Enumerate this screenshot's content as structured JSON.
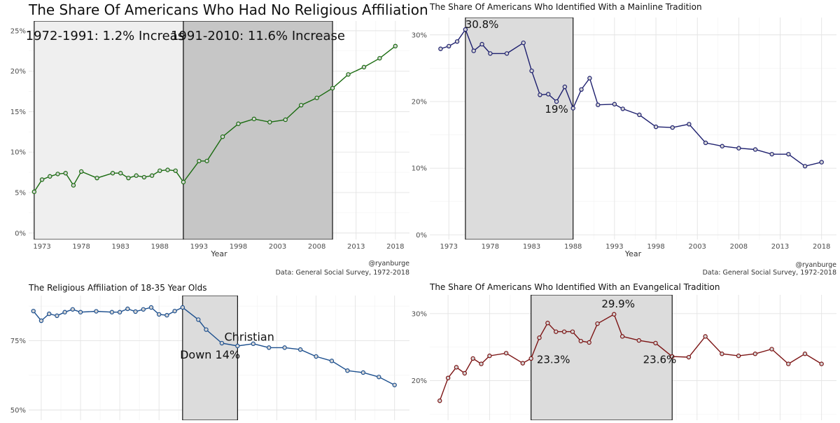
{
  "chart_data": [
    {
      "type": "line",
      "title": "The Share Of Americans Who Had No Religious Affiliation",
      "xlabel": "Year",
      "ylabel": "",
      "x_ticks": [
        1973,
        1978,
        1983,
        1988,
        1993,
        1998,
        2003,
        2008,
        2013,
        2018
      ],
      "y_ticks": [
        0,
        0.05,
        0.1,
        0.15,
        0.2,
        0.25
      ],
      "y_tick_labels": [
        "0%",
        "5%",
        "10%",
        "15%",
        "20%",
        "25%"
      ],
      "xlim": [
        1971.3,
        2019.8
      ],
      "ylim": [
        -0.008,
        0.262
      ],
      "color": "#1a6b10",
      "x": [
        1972,
        1973,
        1974,
        1975,
        1976,
        1977,
        1978,
        1980,
        1982,
        1983,
        1984,
        1985,
        1986,
        1987,
        1988,
        1989,
        1990,
        1991,
        1993,
        1994,
        1996,
        1998,
        2000,
        2002,
        2004,
        2006,
        2008,
        2010,
        2012,
        2014,
        2016,
        2018
      ],
      "y": [
        0.051,
        0.066,
        0.07,
        0.073,
        0.074,
        0.059,
        0.076,
        0.068,
        0.074,
        0.074,
        0.068,
        0.071,
        0.069,
        0.071,
        0.077,
        0.078,
        0.077,
        0.063,
        0.089,
        0.089,
        0.119,
        0.135,
        0.141,
        0.137,
        0.14,
        0.158,
        0.167,
        0.179,
        0.196,
        0.205,
        0.216,
        0.231
      ],
      "shaded": [
        {
          "from": 1972,
          "to": 1991,
          "fill": "#efefef",
          "label": "1972-1991: 1.2% Increase"
        },
        {
          "from": 1991,
          "to": 2010,
          "fill": "#c6c6c6",
          "label": "1991-2010: 11.6% Increase"
        }
      ],
      "caption": [
        "@ryanburge",
        "Data: General Social Survey, 1972-2018"
      ]
    },
    {
      "type": "line",
      "title": "The Share Of Americans Who Identified With a Mainline Tradition",
      "xlabel": "Year",
      "ylabel": "",
      "x_ticks": [
        1973,
        1978,
        1983,
        1988,
        1993,
        1998,
        2003,
        2008,
        2013,
        2018
      ],
      "y_ticks": [
        0,
        0.1,
        0.2,
        0.3
      ],
      "y_tick_labels": [
        "0%",
        "10%",
        "20%",
        "30%"
      ],
      "xlim": [
        1970.7,
        2019.8
      ],
      "ylim": [
        -0.007,
        0.326
      ],
      "color": "#1d1f6e",
      "x": [
        1972,
        1973,
        1974,
        1975,
        1976,
        1977,
        1978,
        1980,
        1982,
        1983,
        1984,
        1985,
        1986,
        1987,
        1988,
        1989,
        1990,
        1991,
        1993,
        1994,
        1996,
        1998,
        2000,
        2002,
        2004,
        2006,
        2008,
        2010,
        2012,
        2014,
        2016,
        2018
      ],
      "y": [
        0.279,
        0.283,
        0.29,
        0.308,
        0.276,
        0.286,
        0.272,
        0.272,
        0.288,
        0.246,
        0.21,
        0.211,
        0.2,
        0.222,
        0.19,
        0.218,
        0.235,
        0.195,
        0.196,
        0.189,
        0.18,
        0.162,
        0.161,
        0.166,
        0.138,
        0.133,
        0.13,
        0.128,
        0.121,
        0.121,
        0.103,
        0.109
      ],
      "shaded": [
        {
          "from": 1975,
          "to": 1988,
          "fill": "#dcdcdc",
          "label": ""
        }
      ],
      "annotations": [
        {
          "text": "30.8%",
          "x": 1977.0,
          "y": 0.31
        },
        {
          "text": "19%",
          "x": 1986.0,
          "y": 0.183
        }
      ],
      "caption": [
        "@ryanburge",
        "Data: General Social Survey, 1972-2018"
      ]
    },
    {
      "type": "line",
      "title": "The Religious Affiliation of 18-35 Year Olds",
      "xlabel": "",
      "ylabel": "",
      "x_ticks": [],
      "y_ticks": [
        0.5,
        0.75
      ],
      "y_tick_labels": [
        "50%",
        "75%"
      ],
      "xlim": [
        1971.4,
        2019.9
      ],
      "ylim": [
        0.463,
        0.913
      ],
      "color": "#1c4f8e",
      "x": [
        1972,
        1973,
        1974,
        1975,
        1976,
        1977,
        1978,
        1980,
        1982,
        1983,
        1984,
        1985,
        1986,
        1987,
        1988,
        1989,
        1990,
        1991,
        1993,
        1994,
        1996,
        1998,
        2000,
        2002,
        2004,
        2006,
        2008,
        2010,
        2012,
        2014,
        2016,
        2018
      ],
      "y": [
        0.857,
        0.822,
        0.847,
        0.84,
        0.853,
        0.863,
        0.853,
        0.856,
        0.853,
        0.853,
        0.865,
        0.855,
        0.863,
        0.87,
        0.845,
        0.842,
        0.857,
        0.87,
        0.826,
        0.79,
        0.741,
        0.731,
        0.739,
        0.725,
        0.725,
        0.718,
        0.693,
        0.677,
        0.642,
        0.635,
        0.619,
        0.59
      ],
      "shaded": [
        {
          "from": 1991,
          "to": 1998,
          "fill": "#dcdcdc",
          "label": ""
        }
      ],
      "annotations": [
        {
          "text": "Christian",
          "x": 1999.5,
          "y": 0.75
        },
        {
          "text": "Down 14%",
          "x": 1994.5,
          "y": 0.685
        }
      ]
    },
    {
      "type": "line",
      "title": "The Share Of Americans Who Identified With an Evangelical Tradition",
      "xlabel": "",
      "ylabel": "",
      "x_ticks": [],
      "y_ticks": [
        0.2,
        0.3
      ],
      "y_tick_labels": [
        "20%",
        "30%"
      ],
      "xlim": [
        1970.8,
        2019.8
      ],
      "ylim": [
        0.141,
        0.328
      ],
      "color": "#7c1414",
      "x": [
        1972,
        1973,
        1974,
        1975,
        1976,
        1977,
        1978,
        1980,
        1982,
        1983,
        1984,
        1985,
        1986,
        1987,
        1988,
        1989,
        1990,
        1991,
        1993,
        1994,
        1996,
        1998,
        2000,
        2002,
        2004,
        2006,
        2008,
        2010,
        2012,
        2014,
        2016,
        2018
      ],
      "y": [
        0.17,
        0.204,
        0.22,
        0.211,
        0.233,
        0.225,
        0.237,
        0.241,
        0.226,
        0.233,
        0.264,
        0.286,
        0.273,
        0.273,
        0.273,
        0.259,
        0.257,
        0.285,
        0.299,
        0.266,
        0.26,
        0.256,
        0.236,
        0.235,
        0.266,
        0.24,
        0.237,
        0.24,
        0.247,
        0.225,
        0.24,
        0.225
      ],
      "shaded": [
        {
          "from": 1983,
          "to": 2000,
          "fill": "#dcdcdc",
          "label": ""
        }
      ],
      "annotations": [
        {
          "text": "29.9%",
          "x": 1993.5,
          "y": 0.309
        },
        {
          "text": "23.3%",
          "x": 1985.7,
          "y": 0.226
        },
        {
          "text": "23.6%",
          "x": 1998.5,
          "y": 0.226
        }
      ]
    }
  ]
}
